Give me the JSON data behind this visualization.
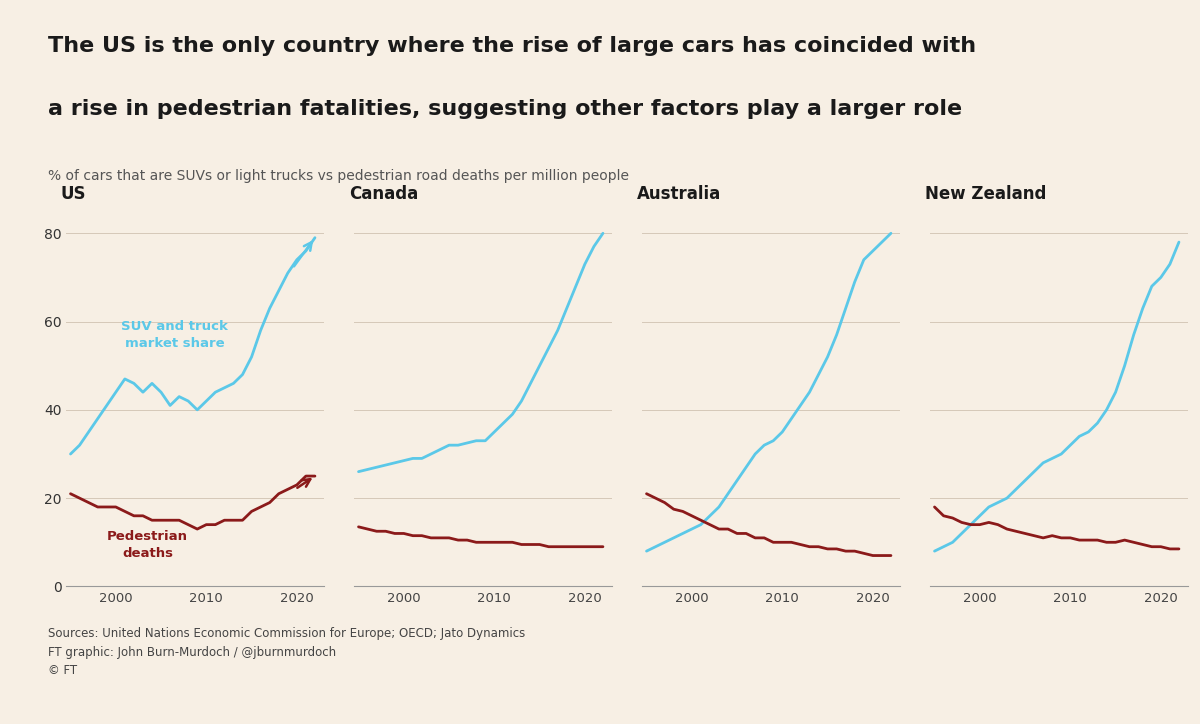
{
  "title_line1": "The US is the only country where the rise of large cars has coincided with",
  "title_line2": "a rise in pedestrian fatalities, suggesting other factors play a larger role",
  "subtitle": "% of cars that are SUVs or light trucks vs pedestrian road deaths per million people",
  "background_color": "#f7efe4",
  "panels": [
    "US",
    "Canada",
    "Australia",
    "New Zealand"
  ],
  "suv_color": "#5bc8e8",
  "ped_color": "#8b1a1a",
  "ylim": [
    0,
    82
  ],
  "yticks": [
    0,
    20,
    40,
    60,
    80
  ],
  "sources_line1": "Sources: United Nations Economic Commission for Europe; OECD; Jato Dynamics",
  "sources_line2": "FT graphic: John Burn-Murdoch / @jburnmurdoch",
  "sources_line3": "© FT",
  "us_suv": {
    "years": [
      1995,
      1996,
      1997,
      1998,
      1999,
      2000,
      2001,
      2002,
      2003,
      2004,
      2005,
      2006,
      2007,
      2008,
      2009,
      2010,
      2011,
      2012,
      2013,
      2014,
      2015,
      2016,
      2017,
      2018,
      2019,
      2020,
      2021,
      2022
    ],
    "values": [
      30,
      32,
      35,
      38,
      41,
      44,
      47,
      46,
      44,
      46,
      44,
      41,
      43,
      42,
      40,
      42,
      44,
      45,
      46,
      48,
      52,
      58,
      63,
      67,
      71,
      74,
      76,
      79
    ]
  },
  "us_ped": {
    "years": [
      1995,
      1996,
      1997,
      1998,
      1999,
      2000,
      2001,
      2002,
      2003,
      2004,
      2005,
      2006,
      2007,
      2008,
      2009,
      2010,
      2011,
      2012,
      2013,
      2014,
      2015,
      2016,
      2017,
      2018,
      2019,
      2020,
      2021,
      2022
    ],
    "values": [
      21,
      20,
      19,
      18,
      18,
      18,
      17,
      16,
      16,
      15,
      15,
      15,
      15,
      14,
      13,
      14,
      14,
      15,
      15,
      15,
      17,
      18,
      19,
      21,
      22,
      23,
      25,
      25
    ]
  },
  "canada_suv": {
    "years": [
      1995,
      1996,
      1997,
      1998,
      1999,
      2000,
      2001,
      2002,
      2003,
      2004,
      2005,
      2006,
      2007,
      2008,
      2009,
      2010,
      2011,
      2012,
      2013,
      2014,
      2015,
      2016,
      2017,
      2018,
      2019,
      2020,
      2021,
      2022
    ],
    "values": [
      26,
      26.5,
      27,
      27.5,
      28,
      28.5,
      29,
      29,
      30,
      31,
      32,
      32,
      32.5,
      33,
      33,
      35,
      37,
      39,
      42,
      46,
      50,
      54,
      58,
      63,
      68,
      73,
      77,
      80
    ]
  },
  "canada_ped": {
    "years": [
      1995,
      1996,
      1997,
      1998,
      1999,
      2000,
      2001,
      2002,
      2003,
      2004,
      2005,
      2006,
      2007,
      2008,
      2009,
      2010,
      2011,
      2012,
      2013,
      2014,
      2015,
      2016,
      2017,
      2018,
      2019,
      2020,
      2021,
      2022
    ],
    "values": [
      13.5,
      13,
      12.5,
      12.5,
      12,
      12,
      11.5,
      11.5,
      11,
      11,
      11,
      10.5,
      10.5,
      10,
      10,
      10,
      10,
      10,
      9.5,
      9.5,
      9.5,
      9,
      9,
      9,
      9,
      9,
      9,
      9
    ]
  },
  "australia_suv": {
    "years": [
      1995,
      1996,
      1997,
      1998,
      1999,
      2000,
      2001,
      2002,
      2003,
      2004,
      2005,
      2006,
      2007,
      2008,
      2009,
      2010,
      2011,
      2012,
      2013,
      2014,
      2015,
      2016,
      2017,
      2018,
      2019,
      2020,
      2021,
      2022
    ],
    "values": [
      8,
      9,
      10,
      11,
      12,
      13,
      14,
      16,
      18,
      21,
      24,
      27,
      30,
      32,
      33,
      35,
      38,
      41,
      44,
      48,
      52,
      57,
      63,
      69,
      74,
      76,
      78,
      80
    ]
  },
  "australia_ped": {
    "years": [
      1995,
      1996,
      1997,
      1998,
      1999,
      2000,
      2001,
      2002,
      2003,
      2004,
      2005,
      2006,
      2007,
      2008,
      2009,
      2010,
      2011,
      2012,
      2013,
      2014,
      2015,
      2016,
      2017,
      2018,
      2019,
      2020,
      2021,
      2022
    ],
    "values": [
      21,
      20,
      19,
      17.5,
      17,
      16,
      15,
      14,
      13,
      13,
      12,
      12,
      11,
      11,
      10,
      10,
      10,
      9.5,
      9,
      9,
      8.5,
      8.5,
      8,
      8,
      7.5,
      7,
      7,
      7
    ]
  },
  "nz_suv": {
    "years": [
      1995,
      1996,
      1997,
      1998,
      1999,
      2000,
      2001,
      2002,
      2003,
      2004,
      2005,
      2006,
      2007,
      2008,
      2009,
      2010,
      2011,
      2012,
      2013,
      2014,
      2015,
      2016,
      2017,
      2018,
      2019,
      2020,
      2021,
      2022
    ],
    "values": [
      8,
      9,
      10,
      12,
      14,
      16,
      18,
      19,
      20,
      22,
      24,
      26,
      28,
      29,
      30,
      32,
      34,
      35,
      37,
      40,
      44,
      50,
      57,
      63,
      68,
      70,
      73,
      78
    ]
  },
  "nz_ped": {
    "years": [
      1995,
      1996,
      1997,
      1998,
      1999,
      2000,
      2001,
      2002,
      2003,
      2004,
      2005,
      2006,
      2007,
      2008,
      2009,
      2010,
      2011,
      2012,
      2013,
      2014,
      2015,
      2016,
      2017,
      2018,
      2019,
      2020,
      2021,
      2022
    ],
    "values": [
      18,
      16,
      15.5,
      14.5,
      14,
      14,
      14.5,
      14,
      13,
      12.5,
      12,
      11.5,
      11,
      11.5,
      11,
      11,
      10.5,
      10.5,
      10.5,
      10,
      10,
      10.5,
      10,
      9.5,
      9,
      9,
      8.5,
      8.5
    ]
  }
}
